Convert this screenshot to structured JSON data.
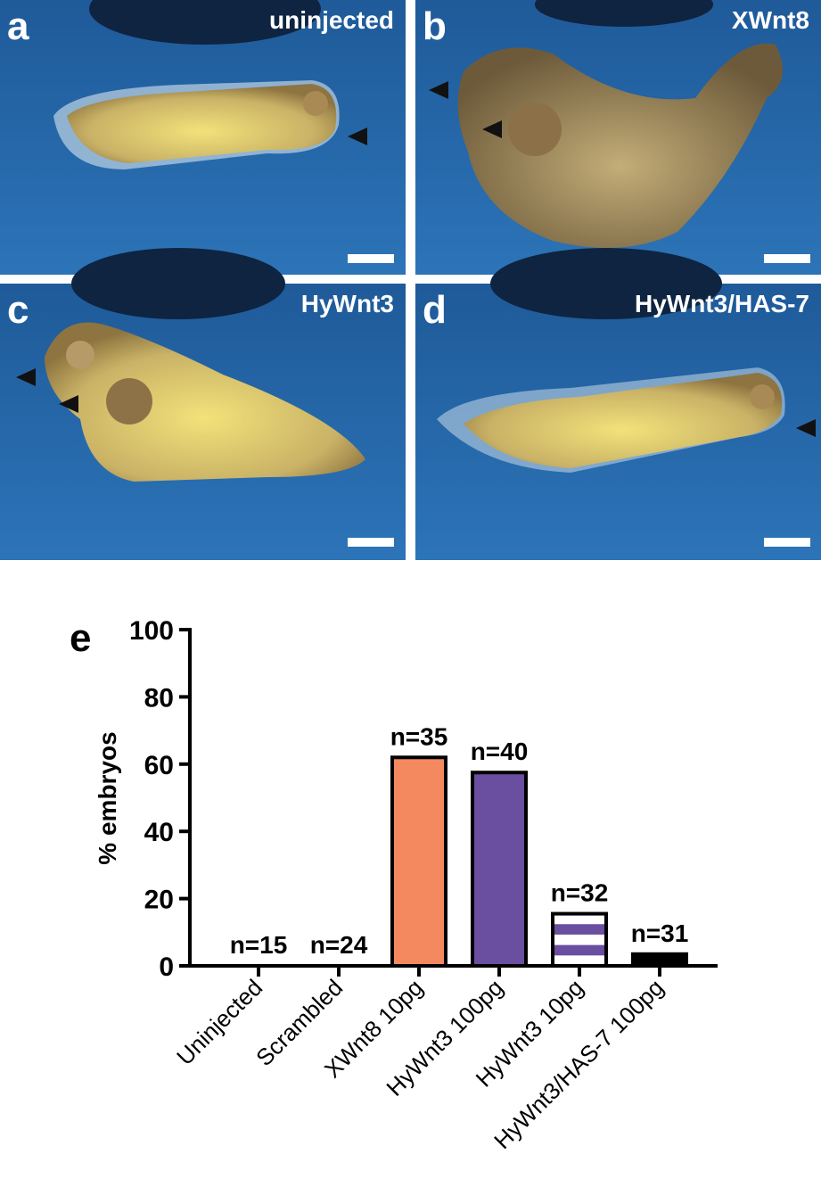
{
  "panels": [
    {
      "letter": "a",
      "label": "uninjected"
    },
    {
      "letter": "b",
      "label": "XWnt8"
    },
    {
      "letter": "c",
      "label": "HyWnt3"
    },
    {
      "letter": "d",
      "label": "HyWnt3/HAS-7"
    }
  ],
  "chart_data": {
    "type": "bar",
    "panel_letter": "e",
    "y_label": "% embryos",
    "categories": [
      "Uninjected",
      "Scrambled",
      "XWnt8 10pg",
      "HyWnt3 100pg",
      "HyWnt3 10pg",
      "HyWnt3/HAS-7 100pg"
    ],
    "values": [
      0,
      0,
      62,
      57.5,
      15.5,
      3.5
    ],
    "bar_annotations": [
      "n=15",
      "n=24",
      "n=35",
      "n=40",
      "n=32",
      "n=31"
    ],
    "colors": [
      "#f4895f",
      "#f4895f",
      "#f4895f",
      "#6a4e9f",
      "#6a4e9f",
      "#000000"
    ],
    "striped": [
      4
    ],
    "ylim": [
      0,
      100
    ],
    "yticks": [
      0,
      20,
      40,
      60,
      80,
      100
    ]
  }
}
